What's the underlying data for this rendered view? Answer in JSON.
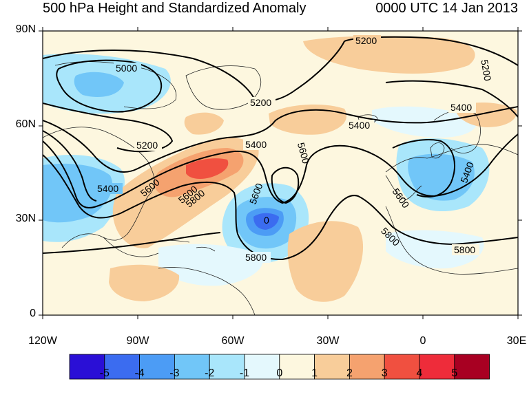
{
  "title": "500 hPa Height and Standardized Anomaly",
  "valid_time": "0000 UTC 14 Jan 2013",
  "axes": {
    "lat_ticks": [
      "90N",
      "60N",
      "30N",
      "0"
    ],
    "lon_ticks": [
      "120W",
      "90W",
      "60W",
      "30W",
      "0",
      "30E"
    ]
  },
  "contour_labels": [
    "5000",
    "5200",
    "5200",
    "5200",
    "5200",
    "5400",
    "5400",
    "5400",
    "5400",
    "5400",
    "5600",
    "5600",
    "5600",
    "5600",
    "5600",
    "5800",
    "5800",
    "5800",
    "5800",
    "0"
  ],
  "colorbar": {
    "labels": [
      "-5",
      "-4",
      "-3",
      "-2",
      "-1",
      "0",
      "1",
      "2",
      "3",
      "4",
      "5"
    ],
    "colors": [
      "#2a0fd6",
      "#3b6cf0",
      "#4c9cf5",
      "#71c6f8",
      "#a9e6fb",
      "#e4f8fd",
      "#fdf7df",
      "#f8cd9a",
      "#f5a26f",
      "#f05040",
      "#ee2c3a",
      "#a80022"
    ]
  }
}
